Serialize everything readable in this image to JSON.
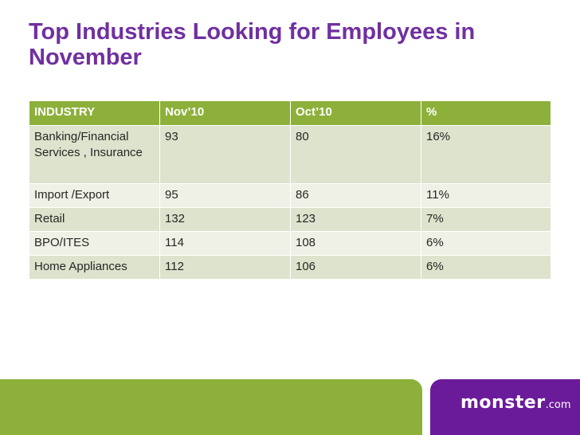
{
  "slide": {
    "title": "Top Industries Looking for Employees in November"
  },
  "table": {
    "headers": [
      "INDUSTRY",
      "Nov’10",
      "Oct’10",
      "%"
    ],
    "rows": [
      [
        "Banking/Financial Services , Insurance",
        "93",
        "80",
        "16%"
      ],
      [
        "Import /Export",
        "95",
        "86",
        "11%"
      ],
      [
        "Retail",
        "132",
        "123",
        "7%"
      ],
      [
        "BPO/ITES",
        "114",
        "108",
        "6%"
      ],
      [
        "Home Appliances",
        "112",
        "106",
        "6%"
      ]
    ]
  },
  "footer": {
    "logo_main": "monster",
    "logo_suffix": ".com",
    "band_color": "#8db03a",
    "brand_color": "#6a1b9a"
  }
}
